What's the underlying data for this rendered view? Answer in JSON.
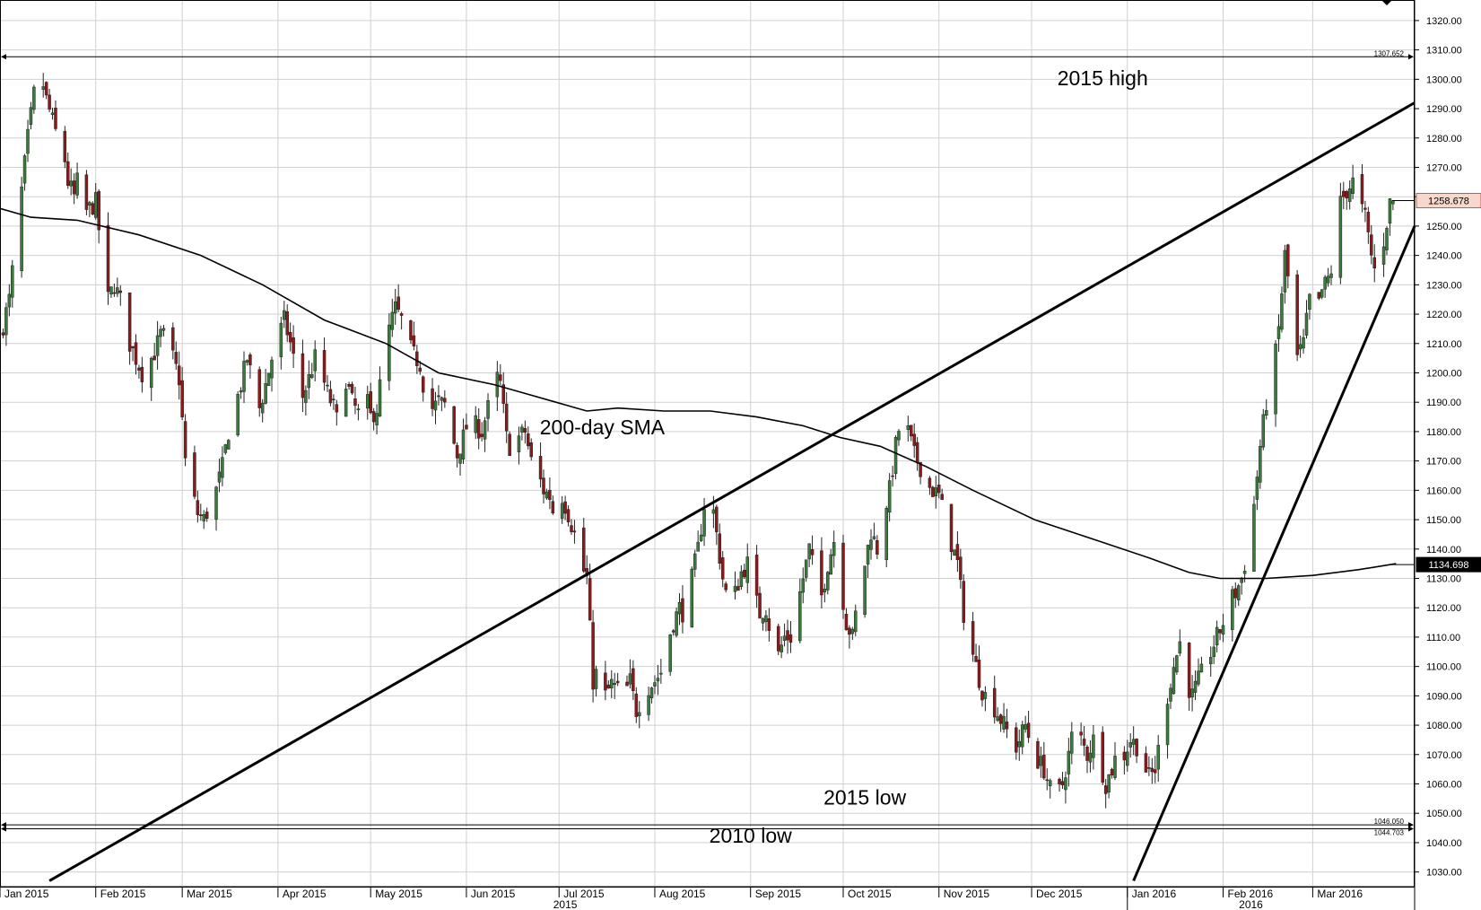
{
  "chart_data": {
    "type": "candlestick",
    "title": "",
    "ylim": [
      1025,
      1327
    ],
    "y_ticks": [
      "1030.00",
      "1040.00",
      "1050.00",
      "1060.00",
      "1070.00",
      "1080.00",
      "1090.00",
      "1100.00",
      "1110.00",
      "1120.00",
      "1130.00",
      "1140.00",
      "1150.00",
      "1160.00",
      "1170.00",
      "1180.00",
      "1190.00",
      "1200.00",
      "1210.00",
      "1220.00",
      "1230.00",
      "1240.00",
      "1250.00",
      "1260.00",
      "1270.00",
      "1280.00",
      "1290.00",
      "1300.00",
      "1310.00",
      "1320.00"
    ],
    "x_months": [
      {
        "label": "Jan 2015",
        "day": 0
      },
      {
        "label": "Feb 2015",
        "day": 31
      },
      {
        "label": "Mar 2015",
        "day": 59
      },
      {
        "label": "Apr 2015",
        "day": 90
      },
      {
        "label": "May 2015",
        "day": 120
      },
      {
        "label": "Jun 2015",
        "day": 151
      },
      {
        "label": "Jul 2015",
        "day": 181
      },
      {
        "label": "Aug 2015",
        "day": 212
      },
      {
        "label": "Sep 2015",
        "day": 243
      },
      {
        "label": "Oct 2015",
        "day": 273
      },
      {
        "label": "Nov 2015",
        "day": 304
      },
      {
        "label": "Dec 2015",
        "day": 334
      },
      {
        "label": "Jan 2016",
        "day": 365
      },
      {
        "label": "Feb 2016",
        "day": 396
      },
      {
        "label": "Mar 2016",
        "day": 425
      }
    ],
    "year_labels": [
      {
        "label": "2015",
        "day": 183
      },
      {
        "label": "2016",
        "day": 405
      }
    ],
    "x_range_days": [
      0,
      458
    ],
    "close_path": [
      [
        0,
        1212
      ],
      [
        3,
        1225
      ],
      [
        6,
        1253
      ],
      [
        9,
        1280
      ],
      [
        11,
        1295
      ],
      [
        13,
        1303
      ],
      [
        15,
        1293
      ],
      [
        18,
        1282
      ],
      [
        20,
        1280
      ],
      [
        22,
        1265
      ],
      [
        24,
        1260
      ],
      [
        26,
        1270
      ],
      [
        28,
        1255
      ],
      [
        31,
        1258
      ],
      [
        33,
        1240
      ],
      [
        35,
        1225
      ],
      [
        37,
        1230
      ],
      [
        40,
        1222
      ],
      [
        42,
        1210
      ],
      [
        44,
        1205
      ],
      [
        46,
        1200
      ],
      [
        48,
        1203
      ],
      [
        50,
        1207
      ],
      [
        52,
        1213
      ],
      [
        54,
        1212
      ],
      [
        56,
        1205
      ],
      [
        58,
        1198
      ],
      [
        60,
        1170
      ],
      [
        62,
        1160
      ],
      [
        64,
        1152
      ],
      [
        66,
        1150
      ],
      [
        68,
        1155
      ],
      [
        70,
        1160
      ],
      [
        72,
        1168
      ],
      [
        74,
        1180
      ],
      [
        76,
        1188
      ],
      [
        78,
        1196
      ],
      [
        80,
        1205
      ],
      [
        82,
        1196
      ],
      [
        84,
        1188
      ],
      [
        86,
        1196
      ],
      [
        88,
        1205
      ],
      [
        90,
        1212
      ],
      [
        92,
        1218
      ],
      [
        94,
        1210
      ],
      [
        96,
        1200
      ],
      [
        98,
        1192
      ],
      [
        100,
        1198
      ],
      [
        102,
        1205
      ],
      [
        104,
        1200
      ],
      [
        106,
        1193
      ],
      [
        108,
        1188
      ],
      [
        110,
        1180
      ],
      [
        112,
        1198
      ],
      [
        114,
        1190
      ],
      [
        116,
        1186
      ],
      [
        118,
        1194
      ],
      [
        120,
        1185
      ],
      [
        122,
        1188
      ],
      [
        124,
        1203
      ],
      [
        126,
        1215
      ],
      [
        128,
        1222
      ],
      [
        130,
        1218
      ],
      [
        132,
        1210
      ],
      [
        134,
        1206
      ],
      [
        136,
        1203
      ],
      [
        138,
        1190
      ],
      [
        140,
        1188
      ],
      [
        142,
        1190
      ],
      [
        144,
        1189
      ],
      [
        146,
        1180
      ],
      [
        148,
        1172
      ],
      [
        150,
        1178
      ],
      [
        152,
        1185
      ],
      [
        154,
        1182
      ],
      [
        156,
        1180
      ],
      [
        158,
        1188
      ],
      [
        160,
        1200
      ],
      [
        162,
        1196
      ],
      [
        164,
        1178
      ],
      [
        166,
        1172
      ],
      [
        168,
        1178
      ],
      [
        170,
        1180
      ],
      [
        172,
        1170
      ],
      [
        174,
        1166
      ],
      [
        176,
        1160
      ],
      [
        178,
        1158
      ],
      [
        180,
        1148
      ],
      [
        182,
        1158
      ],
      [
        184,
        1152
      ],
      [
        186,
        1145
      ],
      [
        188,
        1135
      ],
      [
        190,
        1130
      ],
      [
        192,
        1095
      ],
      [
        194,
        1100
      ],
      [
        196,
        1090
      ],
      [
        198,
        1094
      ],
      [
        200,
        1092
      ],
      [
        202,
        1090
      ],
      [
        204,
        1095
      ],
      [
        206,
        1085
      ],
      [
        208,
        1090
      ],
      [
        210,
        1093
      ],
      [
        212,
        1095
      ],
      [
        214,
        1098
      ],
      [
        216,
        1108
      ],
      [
        218,
        1115
      ],
      [
        220,
        1120
      ],
      [
        222,
        1117
      ],
      [
        224,
        1130
      ],
      [
        226,
        1140
      ],
      [
        228,
        1155
      ],
      [
        230,
        1160
      ],
      [
        232,
        1145
      ],
      [
        234,
        1130
      ],
      [
        236,
        1120
      ],
      [
        238,
        1125
      ],
      [
        240,
        1132
      ],
      [
        242,
        1135
      ],
      [
        244,
        1125
      ],
      [
        246,
        1118
      ],
      [
        248,
        1120
      ],
      [
        250,
        1108
      ],
      [
        252,
        1104
      ],
      [
        254,
        1110
      ],
      [
        256,
        1110
      ],
      [
        258,
        1120
      ],
      [
        260,
        1130
      ],
      [
        262,
        1140
      ],
      [
        264,
        1130
      ],
      [
        266,
        1124
      ],
      [
        268,
        1135
      ],
      [
        270,
        1143
      ],
      [
        272,
        1130
      ],
      [
        274,
        1115
      ],
      [
        276,
        1110
      ],
      [
        278,
        1125
      ],
      [
        280,
        1135
      ],
      [
        282,
        1146
      ],
      [
        284,
        1140
      ],
      [
        286,
        1152
      ],
      [
        288,
        1160
      ],
      [
        290,
        1175
      ],
      [
        292,
        1186
      ],
      [
        294,
        1180
      ],
      [
        296,
        1172
      ],
      [
        298,
        1168
      ],
      [
        300,
        1162
      ],
      [
        302,
        1160
      ],
      [
        304,
        1158
      ],
      [
        306,
        1150
      ],
      [
        308,
        1142
      ],
      [
        310,
        1135
      ],
      [
        312,
        1118
      ],
      [
        314,
        1108
      ],
      [
        316,
        1100
      ],
      [
        318,
        1092
      ],
      [
        320,
        1088
      ],
      [
        322,
        1086
      ],
      [
        324,
        1082
      ],
      [
        326,
        1078
      ],
      [
        328,
        1070
      ],
      [
        330,
        1075
      ],
      [
        332,
        1080
      ],
      [
        334,
        1073
      ],
      [
        336,
        1068
      ],
      [
        338,
        1065
      ],
      [
        340,
        1058
      ],
      [
        342,
        1055
      ],
      [
        344,
        1060
      ],
      [
        346,
        1070
      ],
      [
        348,
        1082
      ],
      [
        350,
        1075
      ],
      [
        352,
        1070
      ],
      [
        354,
        1075
      ],
      [
        356,
        1068
      ],
      [
        358,
        1060
      ],
      [
        360,
        1065
      ],
      [
        362,
        1072
      ],
      [
        364,
        1070
      ],
      [
        366,
        1075
      ],
      [
        368,
        1073
      ],
      [
        370,
        1068
      ],
      [
        372,
        1062
      ],
      [
        374,
        1065
      ],
      [
        376,
        1078
      ],
      [
        378,
        1090
      ],
      [
        380,
        1100
      ],
      [
        382,
        1108
      ],
      [
        384,
        1095
      ],
      [
        386,
        1090
      ],
      [
        388,
        1095
      ],
      [
        390,
        1100
      ],
      [
        392,
        1105
      ],
      [
        394,
        1110
      ],
      [
        396,
        1115
      ],
      [
        398,
        1122
      ],
      [
        400,
        1125
      ],
      [
        402,
        1130
      ],
      [
        404,
        1140
      ],
      [
        406,
        1155
      ],
      [
        408,
        1175
      ],
      [
        410,
        1190
      ],
      [
        412,
        1198
      ],
      [
        414,
        1215
      ],
      [
        416,
        1240
      ],
      [
        418,
        1225
      ],
      [
        420,
        1205
      ],
      [
        422,
        1210
      ],
      [
        424,
        1225
      ],
      [
        426,
        1218
      ],
      [
        428,
        1228
      ],
      [
        430,
        1232
      ],
      [
        432,
        1238
      ],
      [
        434,
        1258
      ],
      [
        436,
        1262
      ],
      [
        438,
        1265
      ],
      [
        440,
        1258
      ],
      [
        442,
        1253
      ],
      [
        444,
        1240
      ],
      [
        446,
        1230
      ],
      [
        448,
        1245
      ],
      [
        450,
        1258
      ],
      [
        451,
        1258.678
      ]
    ],
    "sma_path": [
      [
        0,
        1256
      ],
      [
        10,
        1253
      ],
      [
        25,
        1252
      ],
      [
        45,
        1247
      ],
      [
        65,
        1240
      ],
      [
        85,
        1230
      ],
      [
        105,
        1218
      ],
      [
        125,
        1210
      ],
      [
        142,
        1200
      ],
      [
        160,
        1196
      ],
      [
        170,
        1193
      ],
      [
        180,
        1190
      ],
      [
        190,
        1187
      ],
      [
        200,
        1188
      ],
      [
        215,
        1187
      ],
      [
        230,
        1187
      ],
      [
        245,
        1185
      ],
      [
        260,
        1182
      ],
      [
        272,
        1178
      ],
      [
        285,
        1175
      ],
      [
        300,
        1168
      ],
      [
        315,
        1160
      ],
      [
        335,
        1150
      ],
      [
        355,
        1143
      ],
      [
        372,
        1137
      ],
      [
        385,
        1132
      ],
      [
        395,
        1130
      ],
      [
        410,
        1130
      ],
      [
        425,
        1131
      ],
      [
        440,
        1133
      ],
      [
        452,
        1135
      ]
    ],
    "trendlines": [
      {
        "from": [
          16,
          1027
        ],
        "to": [
          458,
          1292
        ]
      },
      {
        "from": [
          367,
          1027
        ],
        "to": [
          458,
          1250
        ]
      }
    ],
    "hlines": [
      {
        "value": 1307.652,
        "label": "1307.652"
      },
      {
        "value": 1046.05,
        "label": "1046.050"
      },
      {
        "value": 1044.703,
        "label": "1044.703"
      }
    ],
    "annotations": [
      {
        "text": "2015 high",
        "day": 357,
        "value": 1298
      },
      {
        "text": "200-day SMA",
        "day": 195,
        "value": 1179
      },
      {
        "text": "2015 low",
        "day": 280,
        "value": 1053
      },
      {
        "text": "2010 low",
        "day": 243,
        "value": 1040
      }
    ],
    "price_badges": [
      {
        "value": 1258.678,
        "label": "1258.678",
        "style": "last"
      },
      {
        "value": 1134.698,
        "label": "1134.698",
        "style": "sma"
      }
    ],
    "colors": {
      "up": "#3a7a3a",
      "down": "#8b1a1a",
      "grid": "#d0d0d0",
      "line": "#000000",
      "last_badge_bg": "#f7d8cc",
      "sma_badge_bg": "#000000"
    }
  }
}
